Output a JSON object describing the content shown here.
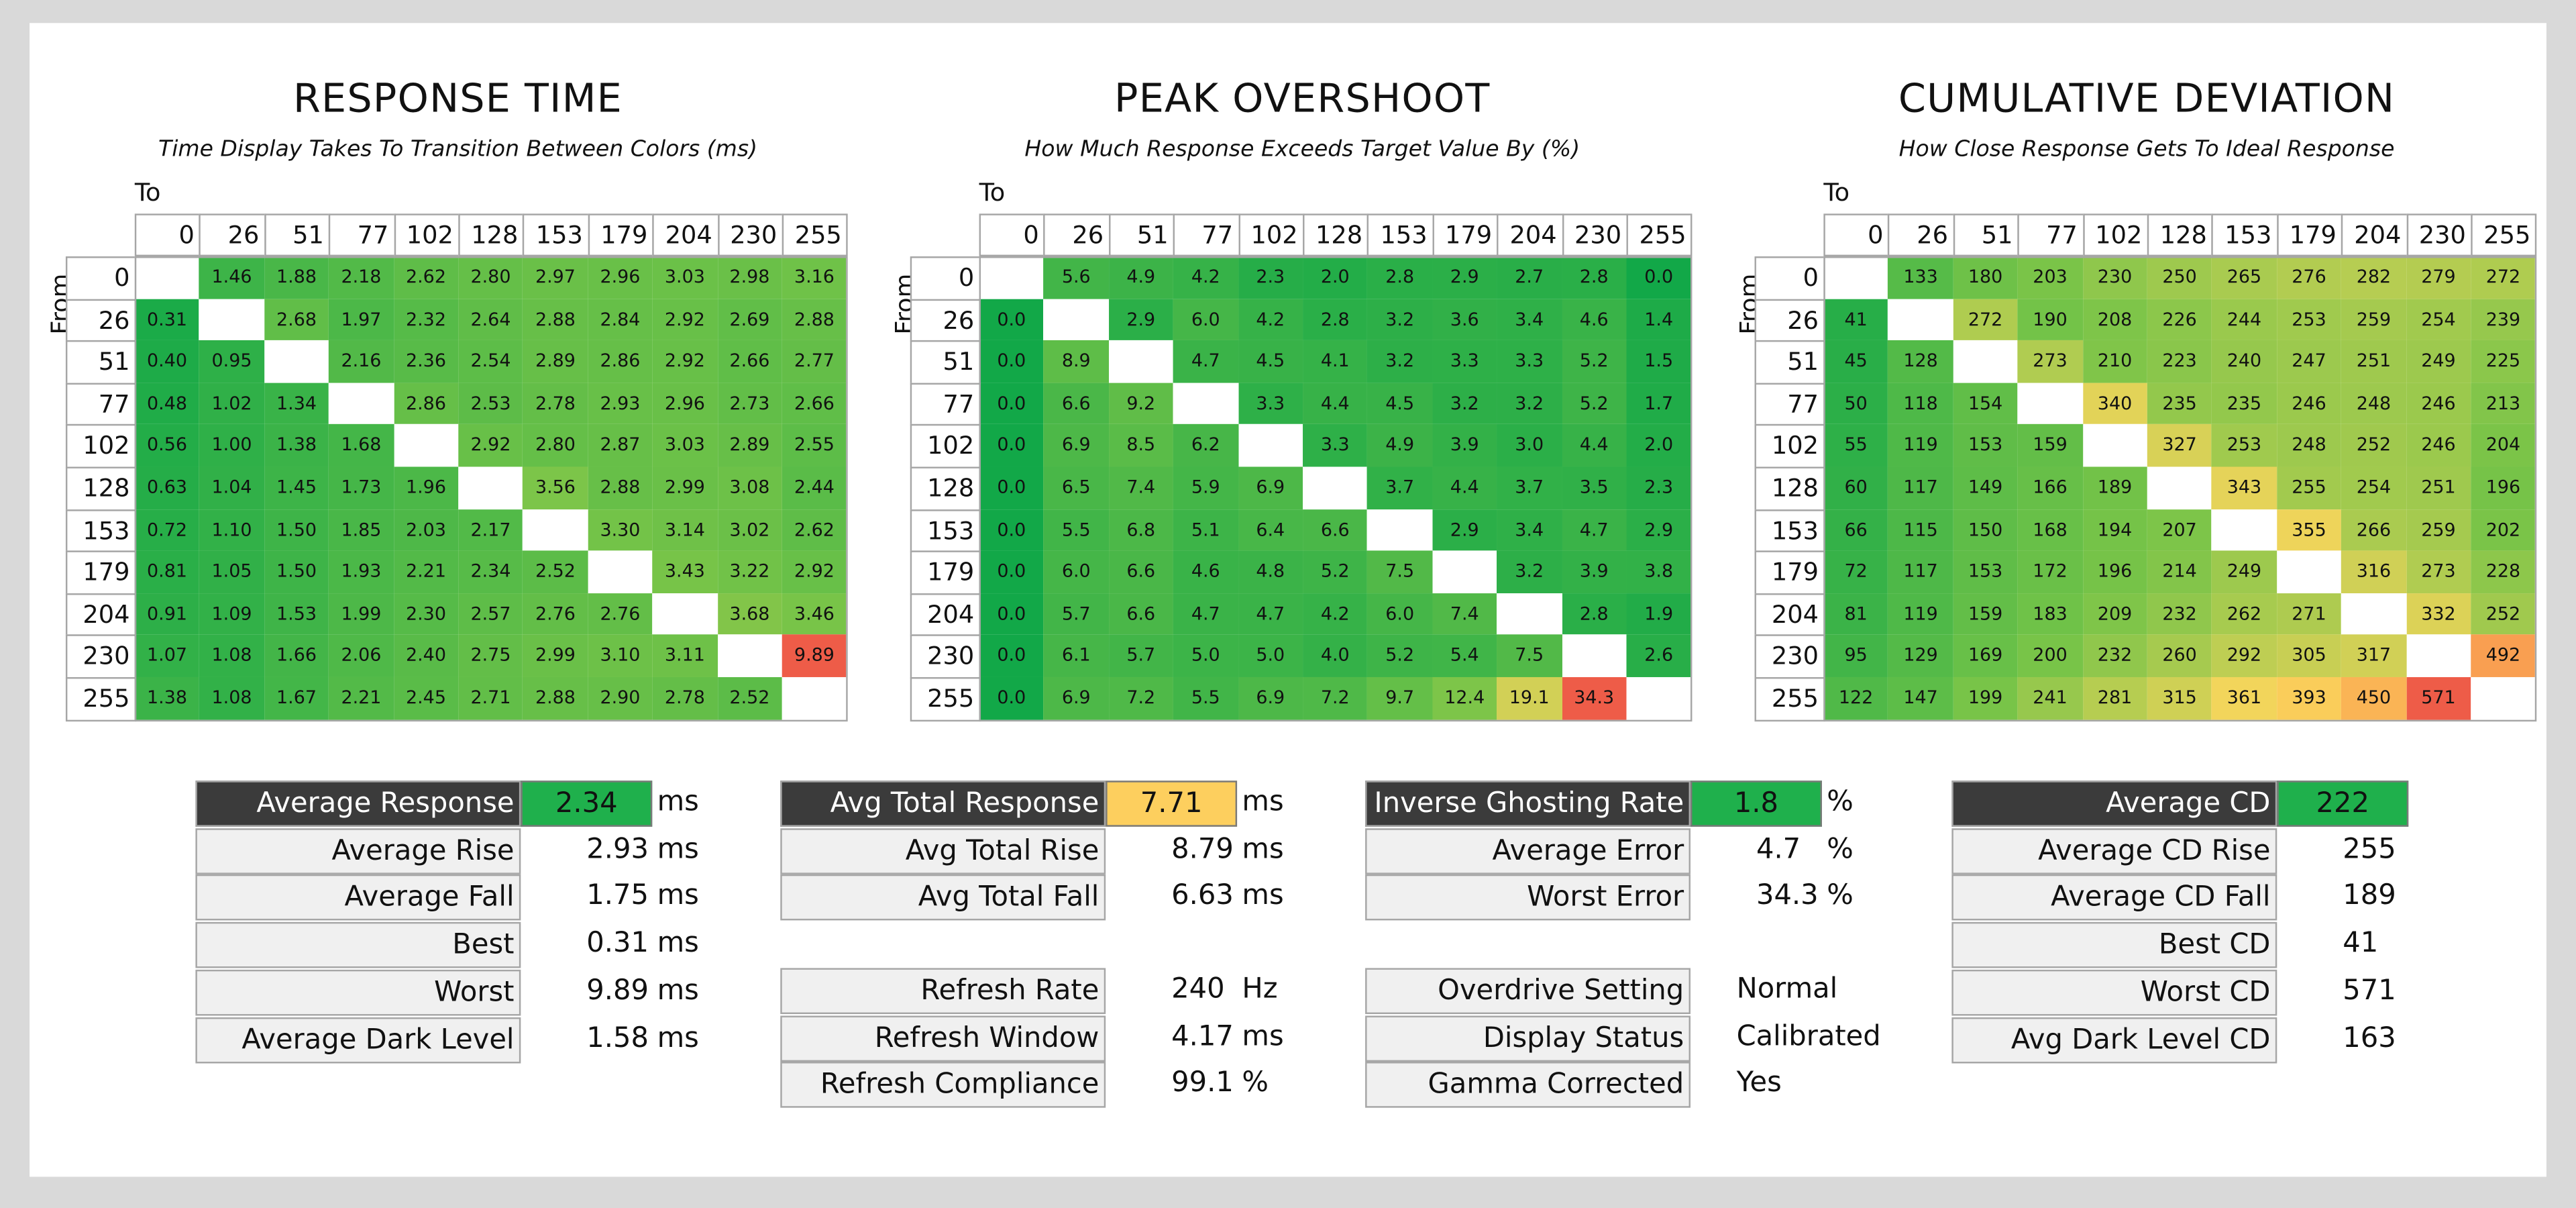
{
  "panels": [
    {
      "title": "RESPONSE TIME",
      "subtitle": "Time Display Takes To Transition Between Colors (ms)",
      "to_label": "To",
      "from_label": "From",
      "columns": [
        0,
        26,
        51,
        77,
        102,
        128,
        153,
        179,
        204,
        230,
        255
      ],
      "rows": [
        {
          "label": 0,
          "cells": [
            null,
            "1.46",
            "1.88",
            "2.18",
            "2.62",
            "2.80",
            "2.97",
            "2.96",
            "3.03",
            "2.98",
            "3.16"
          ]
        },
        {
          "label": 26,
          "cells": [
            "0.31",
            null,
            "2.68",
            "1.97",
            "2.32",
            "2.64",
            "2.88",
            "2.84",
            "2.92",
            "2.69",
            "2.88"
          ]
        },
        {
          "label": 51,
          "cells": [
            "0.40",
            "0.95",
            null,
            "2.16",
            "2.36",
            "2.54",
            "2.89",
            "2.86",
            "2.92",
            "2.66",
            "2.77"
          ]
        },
        {
          "label": 77,
          "cells": [
            "0.48",
            "1.02",
            "1.34",
            null,
            "2.86",
            "2.53",
            "2.78",
            "2.93",
            "2.96",
            "2.73",
            "2.66"
          ]
        },
        {
          "label": 102,
          "cells": [
            "0.56",
            "1.00",
            "1.38",
            "1.68",
            null,
            "2.92",
            "2.80",
            "2.87",
            "3.03",
            "2.89",
            "2.55"
          ]
        },
        {
          "label": 128,
          "cells": [
            "0.63",
            "1.04",
            "1.45",
            "1.73",
            "1.96",
            null,
            "3.56",
            "2.88",
            "2.99",
            "3.08",
            "2.44"
          ]
        },
        {
          "label": 153,
          "cells": [
            "0.72",
            "1.10",
            "1.50",
            "1.85",
            "2.03",
            "2.17",
            null,
            "3.30",
            "3.14",
            "3.02",
            "2.62"
          ]
        },
        {
          "label": 179,
          "cells": [
            "0.81",
            "1.05",
            "1.50",
            "1.93",
            "2.21",
            "2.34",
            "2.52",
            null,
            "3.43",
            "3.22",
            "2.92"
          ]
        },
        {
          "label": 204,
          "cells": [
            "0.91",
            "1.09",
            "1.53",
            "1.99",
            "2.30",
            "2.57",
            "2.76",
            "2.76",
            null,
            "3.68",
            "3.46"
          ]
        },
        {
          "label": 230,
          "cells": [
            "1.07",
            "1.08",
            "1.66",
            "2.06",
            "2.40",
            "2.75",
            "2.99",
            "3.10",
            "3.11",
            null,
            "9.89"
          ]
        },
        {
          "label": 255,
          "cells": [
            "1.38",
            "1.08",
            "1.67",
            "2.21",
            "2.45",
            "2.71",
            "2.88",
            "2.90",
            "2.78",
            "2.52",
            null
          ]
        }
      ]
    },
    {
      "title": "PEAK OVERSHOOT",
      "subtitle": "How Much Response Exceeds Target Value By (%)",
      "to_label": "To",
      "from_label": "From",
      "columns": [
        0,
        26,
        51,
        77,
        102,
        128,
        153,
        179,
        204,
        230,
        255
      ],
      "rows": [
        {
          "label": 0,
          "cells": [
            null,
            "5.6",
            "4.9",
            "4.2",
            "2.3",
            "2.0",
            "2.8",
            "2.9",
            "2.7",
            "2.8",
            "0.0"
          ]
        },
        {
          "label": 26,
          "cells": [
            "0.0",
            null,
            "2.9",
            "6.0",
            "4.2",
            "2.8",
            "3.2",
            "3.6",
            "3.4",
            "4.6",
            "1.4"
          ]
        },
        {
          "label": 51,
          "cells": [
            "0.0",
            "8.9",
            null,
            "4.7",
            "4.5",
            "4.1",
            "3.2",
            "3.3",
            "3.3",
            "5.2",
            "1.5"
          ]
        },
        {
          "label": 77,
          "cells": [
            "0.0",
            "6.6",
            "9.2",
            null,
            "3.3",
            "4.4",
            "4.5",
            "3.2",
            "3.2",
            "5.2",
            "1.7"
          ]
        },
        {
          "label": 102,
          "cells": [
            "0.0",
            "6.9",
            "8.5",
            "6.2",
            null,
            "3.3",
            "4.9",
            "3.9",
            "3.0",
            "4.4",
            "2.0"
          ]
        },
        {
          "label": 128,
          "cells": [
            "0.0",
            "6.5",
            "7.4",
            "5.9",
            "6.9",
            null,
            "3.7",
            "4.4",
            "3.7",
            "3.5",
            "2.3"
          ]
        },
        {
          "label": 153,
          "cells": [
            "0.0",
            "5.5",
            "6.8",
            "5.1",
            "6.4",
            "6.6",
            null,
            "2.9",
            "3.4",
            "4.7",
            "2.9"
          ]
        },
        {
          "label": 179,
          "cells": [
            "0.0",
            "6.0",
            "6.6",
            "4.6",
            "4.8",
            "5.2",
            "7.5",
            null,
            "3.2",
            "3.9",
            "3.8"
          ]
        },
        {
          "label": 204,
          "cells": [
            "0.0",
            "5.7",
            "6.6",
            "4.7",
            "4.7",
            "4.2",
            "6.0",
            "7.4",
            null,
            "2.8",
            "1.9"
          ]
        },
        {
          "label": 230,
          "cells": [
            "0.0",
            "6.1",
            "5.7",
            "5.0",
            "5.0",
            "4.0",
            "5.2",
            "5.4",
            "7.5",
            null,
            "2.6"
          ]
        },
        {
          "label": 255,
          "cells": [
            "0.0",
            "6.9",
            "7.2",
            "5.5",
            "6.9",
            "7.2",
            "9.7",
            "12.4",
            "19.1",
            "34.3",
            null
          ]
        }
      ]
    },
    {
      "title": "CUMULATIVE DEVIATION",
      "subtitle": "How Close Response Gets To Ideal Response",
      "to_label": "To",
      "from_label": "From",
      "columns": [
        0,
        26,
        51,
        77,
        102,
        128,
        153,
        179,
        204,
        230,
        255
      ],
      "rows": [
        {
          "label": 0,
          "cells": [
            null,
            "133",
            "180",
            "203",
            "230",
            "250",
            "265",
            "276",
            "282",
            "279",
            "272"
          ]
        },
        {
          "label": 26,
          "cells": [
            "41",
            null,
            "272",
            "190",
            "208",
            "226",
            "244",
            "253",
            "259",
            "254",
            "239"
          ]
        },
        {
          "label": 51,
          "cells": [
            "45",
            "128",
            null,
            "273",
            "210",
            "223",
            "240",
            "247",
            "251",
            "249",
            "225"
          ]
        },
        {
          "label": 77,
          "cells": [
            "50",
            "118",
            "154",
            null,
            "340",
            "235",
            "235",
            "246",
            "248",
            "246",
            "213"
          ]
        },
        {
          "label": 102,
          "cells": [
            "55",
            "119",
            "153",
            "159",
            null,
            "327",
            "253",
            "248",
            "252",
            "246",
            "204"
          ]
        },
        {
          "label": 128,
          "cells": [
            "60",
            "117",
            "149",
            "166",
            "189",
            null,
            "343",
            "255",
            "254",
            "251",
            "196"
          ]
        },
        {
          "label": 153,
          "cells": [
            "66",
            "115",
            "150",
            "168",
            "194",
            "207",
            null,
            "355",
            "266",
            "259",
            "202"
          ]
        },
        {
          "label": 179,
          "cells": [
            "72",
            "117",
            "153",
            "172",
            "196",
            "214",
            "249",
            null,
            "316",
            "273",
            "228"
          ]
        },
        {
          "label": 204,
          "cells": [
            "81",
            "119",
            "159",
            "183",
            "209",
            "232",
            "262",
            "271",
            null,
            "332",
            "252"
          ]
        },
        {
          "label": 230,
          "cells": [
            "95",
            "129",
            "169",
            "200",
            "232",
            "260",
            "292",
            "305",
            "317",
            null,
            "492"
          ]
        },
        {
          "label": 255,
          "cells": [
            "122",
            "147",
            "199",
            "241",
            "281",
            "315",
            "361",
            "393",
            "450",
            "571",
            null
          ]
        }
      ]
    }
  ],
  "stats": [
    {
      "first_row_dark": true,
      "value_color": "#1fb04c",
      "rows": [
        {
          "label": "Average Response",
          "value": 2.34,
          "unit": "ms"
        },
        {
          "label": "Average Rise",
          "value": 2.93,
          "unit": "ms"
        },
        {
          "label": "Average Fall",
          "value": 1.75,
          "unit": "ms"
        },
        {
          "label": "Best",
          "value": 0.31,
          "unit": "ms"
        },
        {
          "label": "Worst",
          "value": 9.89,
          "unit": "ms"
        },
        {
          "label": "Average Dark Level",
          "value": 1.58,
          "unit": "ms"
        }
      ]
    },
    {
      "first_row_dark": true,
      "value_color": "#fdcf5e",
      "rows": [
        {
          "label": "Avg Total Response",
          "value": 7.71,
          "unit": "ms"
        },
        {
          "label": "Avg Total Rise",
          "value": 8.79,
          "unit": "ms"
        },
        {
          "label": "Avg Total Fall",
          "value": 6.63,
          "unit": "ms"
        }
      ]
    },
    {
      "first_row_dark": false,
      "rows": [
        {
          "label": "Refresh Rate",
          "value": 240,
          "unit": "Hz"
        },
        {
          "label": "Refresh Window",
          "value": 4.17,
          "unit": "ms"
        },
        {
          "label": "Refresh Compliance",
          "value": 99.1,
          "unit": "%"
        }
      ]
    },
    {
      "first_row_dark": true,
      "value_color": "#1fb04c",
      "rows": [
        {
          "label": "Inverse Ghosting Rate",
          "value": 1.8,
          "unit": "%"
        },
        {
          "label": "Average Error",
          "value": 4.7,
          "unit": "%"
        },
        {
          "label": "Worst Error",
          "value": 34.3,
          "unit": "%"
        }
      ]
    },
    {
      "first_row_dark": false,
      "rows": [
        {
          "label": "Overdrive Setting",
          "value": "Normal"
        },
        {
          "label": "Display Status",
          "value": "Calibrated"
        },
        {
          "label": "Gamma Corrected",
          "value": "Yes"
        }
      ]
    },
    {
      "first_row_dark": true,
      "value_color": "#1fb04c",
      "rows": [
        {
          "label": "Average CD",
          "value": 222
        },
        {
          "label": "Average CD Rise",
          "value": 255
        },
        {
          "label": "Average CD Fall",
          "value": 189
        },
        {
          "label": "Best CD",
          "value": 41
        },
        {
          "label": "Worst CD",
          "value": 571
        },
        {
          "label": "Avg Dark Level CD",
          "value": 163
        }
      ]
    }
  ]
}
